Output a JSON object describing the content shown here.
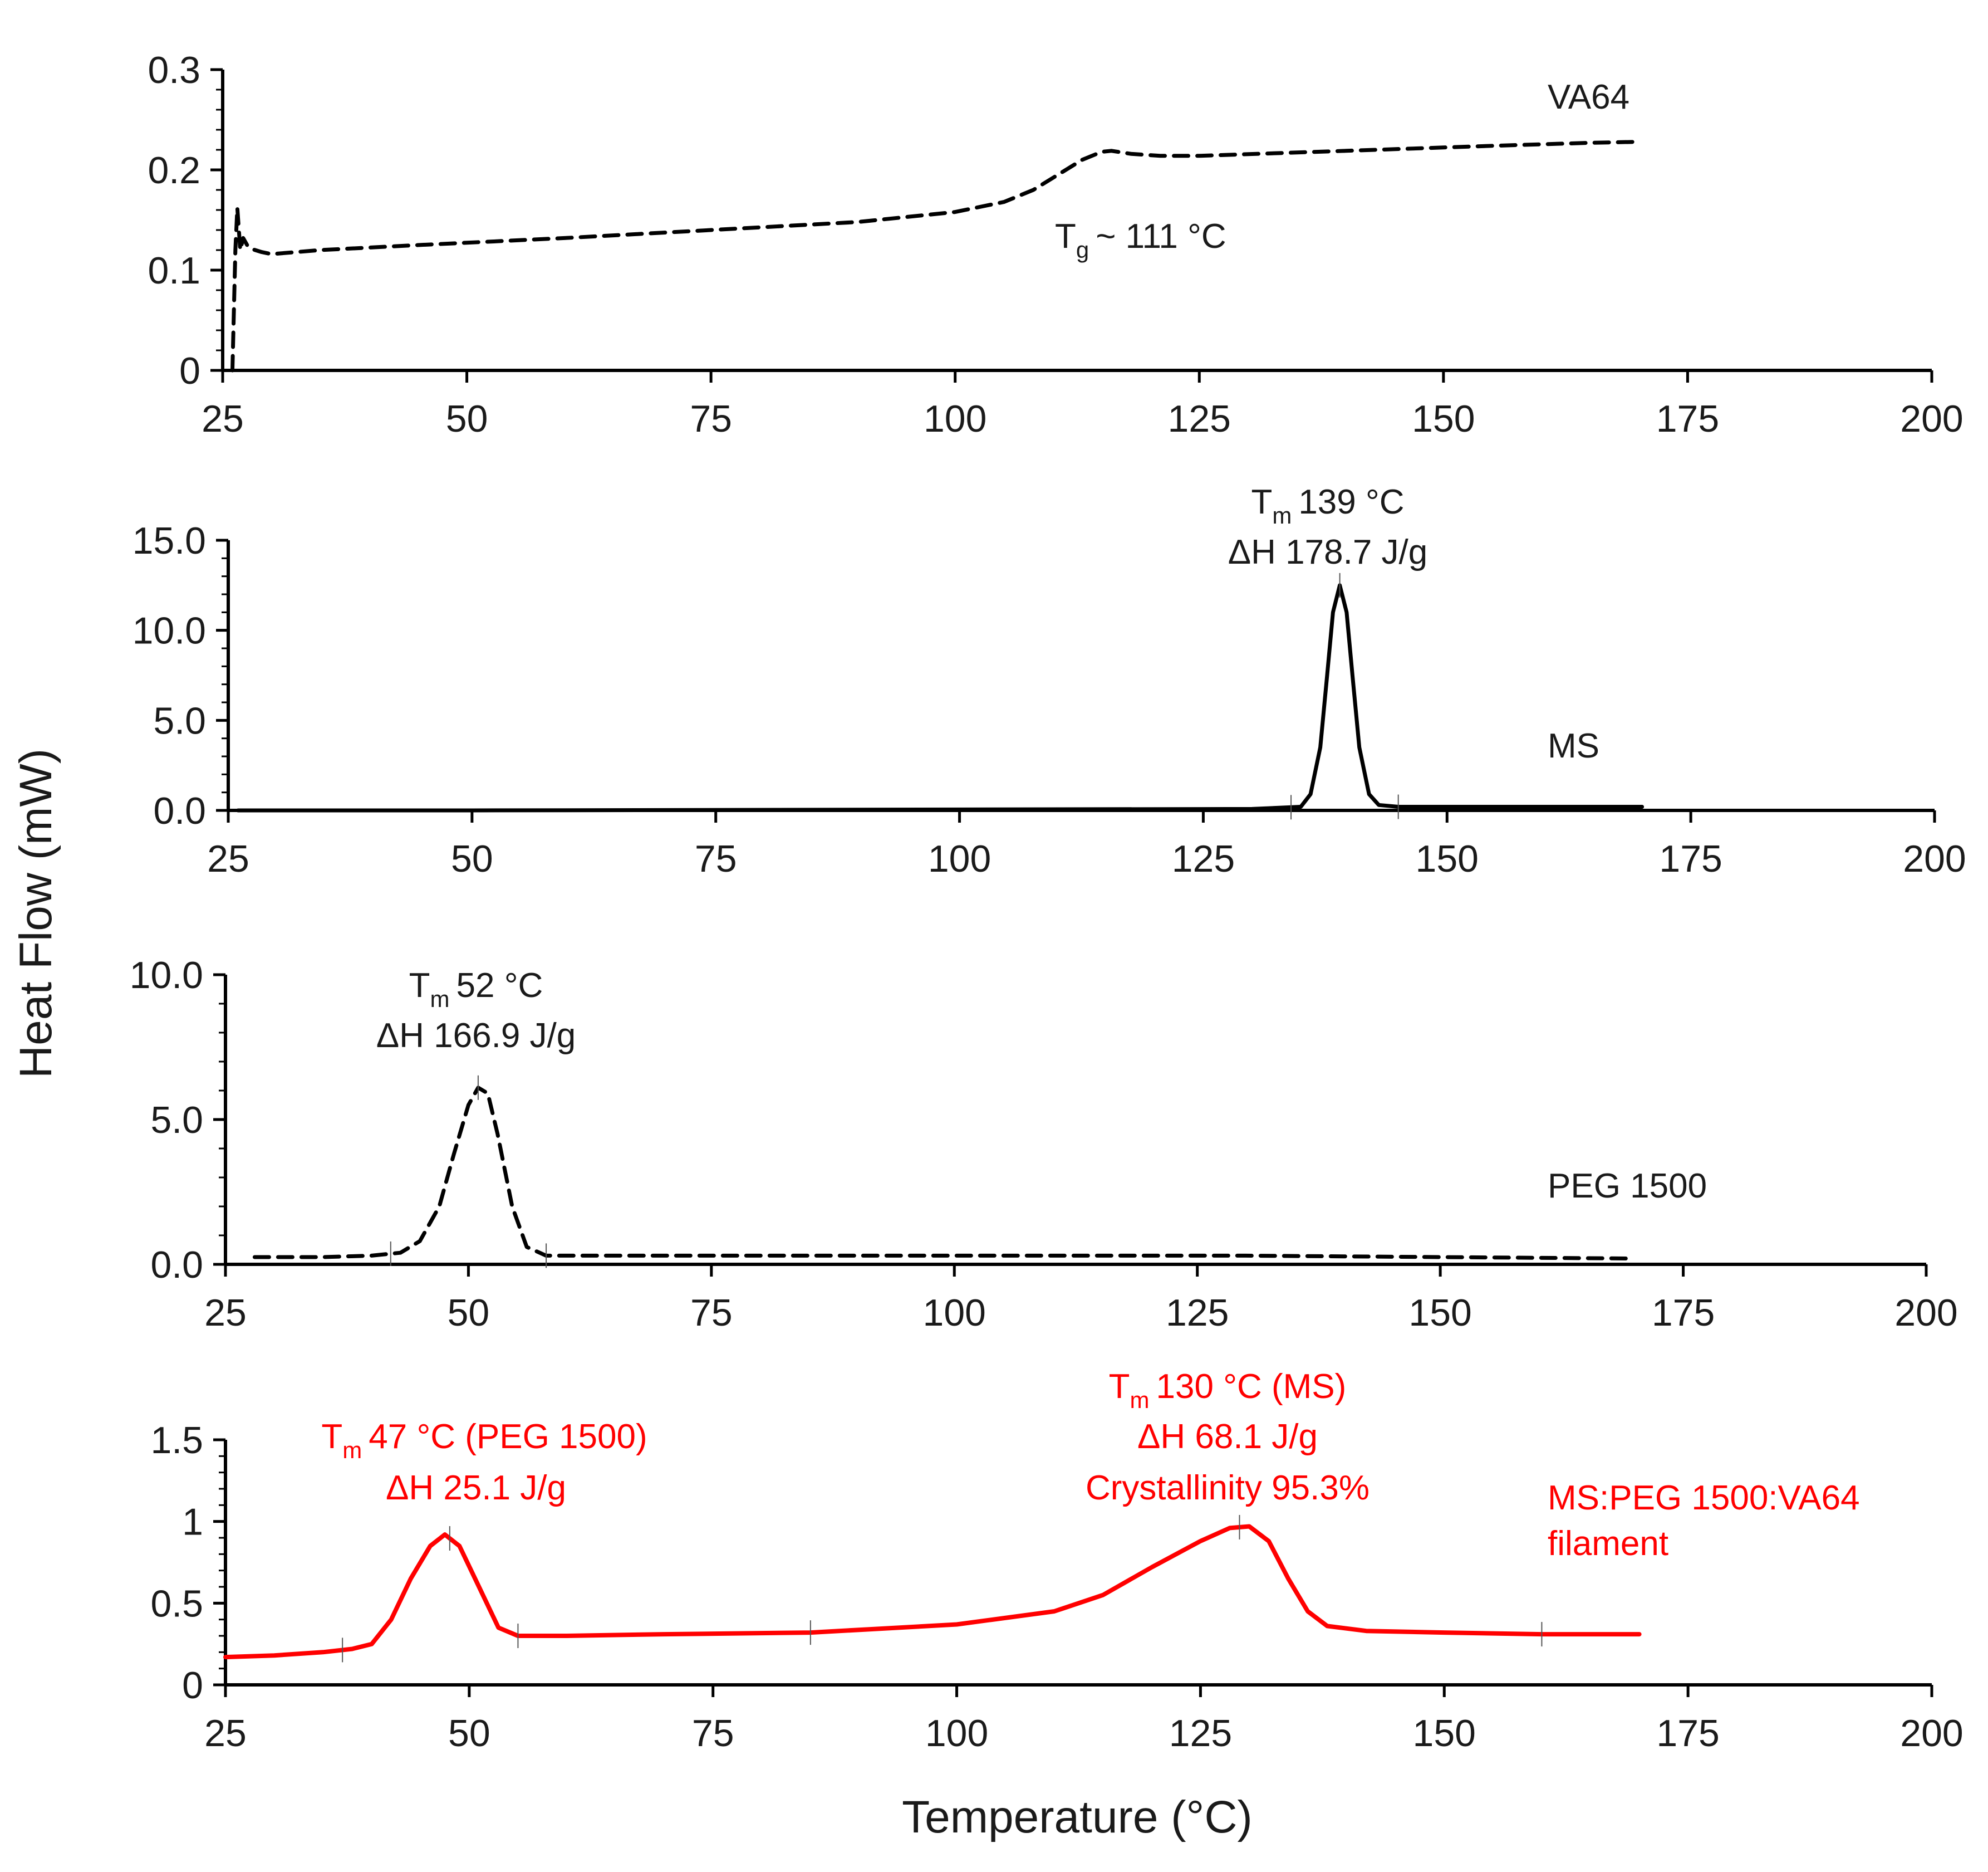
{
  "figure": {
    "ylabel": "Heat Flow (mW)",
    "xlabel": "Temperature (°C)",
    "colors": {
      "black": "#000000",
      "red": "#ff0000",
      "text": "#1a1a1a"
    }
  },
  "chart_data": [
    {
      "type": "line",
      "series_name": "VA64",
      "line_style": "dashed",
      "color": "#000000",
      "xlim": [
        25,
        200
      ],
      "ylim": [
        0,
        0.3
      ],
      "x_ticks": [
        25,
        50,
        75,
        100,
        125,
        150,
        175,
        200
      ],
      "x_tick_labels": [
        "25",
        "50",
        "75",
        "100",
        "125",
        "150",
        "175",
        "200"
      ],
      "y_ticks": [
        0,
        0.1,
        0.2,
        0.3
      ],
      "y_tick_labels": [
        "0",
        "0.1",
        "0.2",
        "0.3"
      ],
      "x": [
        26,
        26.3,
        26.5,
        26.8,
        27.1,
        27.5,
        28,
        29,
        30,
        35,
        45,
        60,
        75,
        90,
        100,
        105,
        108,
        111,
        113,
        115,
        116,
        118,
        121,
        125,
        140,
        155,
        165,
        170
      ],
      "y": [
        0.0,
        0.12,
        0.162,
        0.12,
        0.132,
        0.125,
        0.121,
        0.118,
        0.116,
        0.12,
        0.125,
        0.132,
        0.14,
        0.148,
        0.158,
        0.168,
        0.18,
        0.198,
        0.21,
        0.218,
        0.219,
        0.216,
        0.214,
        0.214,
        0.219,
        0.224,
        0.227,
        0.228
      ],
      "annotations": [
        {
          "text": "~ 111 °C",
          "symbol": "T",
          "subscript": "g",
          "at_x": 111
        }
      ],
      "peak_markers": []
    },
    {
      "type": "line",
      "series_name": "MS",
      "line_style": "solid",
      "color": "#000000",
      "xlim": [
        25,
        200
      ],
      "ylim": [
        0,
        15
      ],
      "x_ticks": [
        25,
        50,
        75,
        100,
        125,
        150,
        175,
        200
      ],
      "x_tick_labels": [
        "25",
        "50",
        "75",
        "100",
        "125",
        "150",
        "175",
        "200"
      ],
      "y_ticks": [
        0,
        5,
        10,
        15
      ],
      "y_tick_labels": [
        "0.0",
        "5.0",
        "10.0",
        "15.0"
      ],
      "x": [
        26,
        50,
        100,
        130,
        135,
        136,
        137,
        137.7,
        138.3,
        139,
        139.7,
        140.3,
        141,
        142,
        143,
        145,
        150,
        160,
        170
      ],
      "y": [
        0.0,
        0.0,
        0.05,
        0.08,
        0.2,
        0.9,
        3.5,
        7.5,
        11.0,
        12.5,
        11.0,
        7.5,
        3.5,
        0.9,
        0.3,
        0.2,
        0.2,
        0.2,
        0.2
      ],
      "annotations": [
        {
          "text": "139 °C",
          "symbol": "T",
          "subscript": "m",
          "at_x": 139
        },
        {
          "text": "ΔH 178.7 J/g",
          "at_x": 139
        }
      ],
      "peak_markers": [
        134,
        139,
        145
      ]
    },
    {
      "type": "line",
      "series_name": "PEG 1500",
      "line_style": "dashed",
      "color": "#000000",
      "xlim": [
        25,
        200
      ],
      "ylim": [
        0,
        10
      ],
      "x_ticks": [
        25,
        50,
        75,
        100,
        125,
        150,
        175,
        200
      ],
      "x_tick_labels": [
        "25",
        "50",
        "75",
        "100",
        "125",
        "150",
        "175",
        "200"
      ],
      "y_ticks": [
        0,
        5,
        10
      ],
      "y_tick_labels": [
        "0.0",
        "5.0",
        "10.0"
      ],
      "x": [
        28,
        35,
        40,
        43,
        45,
        47,
        48.5,
        50,
        51,
        52,
        53,
        54.5,
        56,
        58,
        65,
        100,
        130,
        150,
        170
      ],
      "y": [
        0.25,
        0.25,
        0.3,
        0.4,
        0.8,
        2.0,
        3.8,
        5.5,
        6.1,
        5.9,
        4.5,
        2.0,
        0.6,
        0.3,
        0.3,
        0.3,
        0.3,
        0.25,
        0.2
      ],
      "annotations": [
        {
          "text": "52 °C",
          "symbol": "T",
          "subscript": "m",
          "at_x": 52
        },
        {
          "text": "ΔH 166.9 J/g",
          "at_x": 52
        }
      ],
      "peak_markers": [
        42,
        51,
        58
      ]
    },
    {
      "type": "line",
      "series_name": "MS:PEG 1500:VA64 filament",
      "series_name_lines": [
        "MS:PEG 1500:VA64",
        "filament"
      ],
      "line_style": "solid",
      "color": "#ff0000",
      "xlim": [
        25,
        200
      ],
      "ylim": [
        0,
        1.5
      ],
      "x_ticks": [
        25,
        50,
        75,
        100,
        125,
        150,
        175,
        200
      ],
      "x_tick_labels": [
        "25",
        "50",
        "75",
        "100",
        "125",
        "150",
        "175",
        "200"
      ],
      "y_ticks": [
        0,
        0.5,
        1,
        1.5
      ],
      "y_tick_labels": [
        "0",
        "0.5",
        "1",
        "1.5"
      ],
      "x": [
        25,
        30,
        35,
        38,
        40,
        42,
        44,
        46,
        47.5,
        49,
        51,
        53,
        55,
        60,
        70,
        85,
        100,
        110,
        115,
        120,
        125,
        128,
        130,
        132,
        134,
        136,
        138,
        142,
        150,
        160,
        170
      ],
      "y": [
        0.17,
        0.18,
        0.2,
        0.22,
        0.25,
        0.4,
        0.65,
        0.85,
        0.92,
        0.85,
        0.6,
        0.35,
        0.3,
        0.3,
        0.31,
        0.32,
        0.37,
        0.45,
        0.55,
        0.72,
        0.88,
        0.96,
        0.97,
        0.88,
        0.65,
        0.45,
        0.36,
        0.33,
        0.32,
        0.31,
        0.31
      ],
      "annotations": [
        {
          "text": "47 °C (PEG 1500)",
          "symbol": "T",
          "subscript": "m",
          "at_x": 47
        },
        {
          "text": "ΔH 25.1 J/g",
          "at_x": 47
        },
        {
          "text": "130 °C (MS)",
          "symbol": "T",
          "subscript": "m",
          "at_x": 130
        },
        {
          "text": "ΔH 68.1 J/g",
          "at_x": 130
        },
        {
          "text": "Crystallinity 95.3%",
          "at_x": 130
        }
      ],
      "peak_markers": [
        37,
        48,
        55,
        85,
        129,
        160
      ]
    }
  ]
}
